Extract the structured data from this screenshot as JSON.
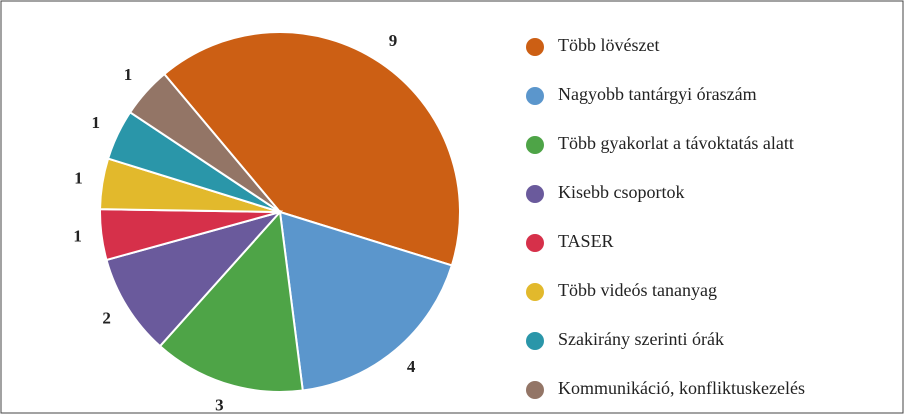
{
  "chart_data": {
    "type": "pie",
    "categories": [
      "Több lövészet",
      "Nagyobb tantárgyi óraszám",
      "Több gyakorlat a távoktatás alatt",
      "Kisebb csoportok",
      "TASER",
      "Több videós tananyag",
      "Szakirány szerinti órák",
      "Kommunikáció, konfliktuskezelés"
    ],
    "values": [
      9,
      4,
      3,
      2,
      1,
      1,
      1,
      1
    ],
    "colors": [
      "#cc5f14",
      "#5b96cc",
      "#4ea447",
      "#6a5a9c",
      "#d6304a",
      "#e2b92c",
      "#2a96a9",
      "#937566"
    ],
    "legend": "right"
  }
}
